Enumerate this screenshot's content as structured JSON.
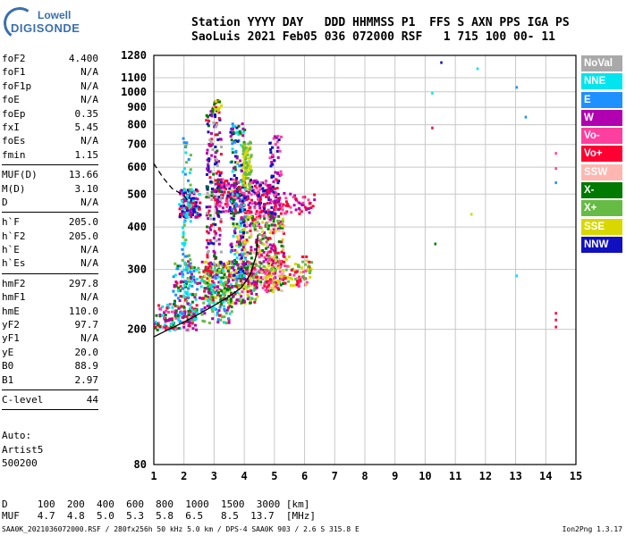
{
  "logo": {
    "line1": "Lowell",
    "line2": "DIGISONDE"
  },
  "header": {
    "line1": "Station YYYY DAY   DDD HHMMSS P1  FFS S AXN PPS IGA PS",
    "line2": "SaoLuis 2021 Feb05 036 072000 RSF   1 715 100 00- 11"
  },
  "params": [
    {
      "name": "foF2",
      "value": "4.400"
    },
    {
      "name": "foF1",
      "value": "N/A"
    },
    {
      "name": "foF1p",
      "value": "N/A"
    },
    {
      "name": "foE",
      "value": "N/A"
    },
    {
      "name": "foEp",
      "value": "0.35"
    },
    {
      "name": "fxI",
      "value": "5.45"
    },
    {
      "name": "foEs",
      "value": "N/A"
    },
    {
      "name": "fmin",
      "value": "1.15"
    },
    {
      "sep": true
    },
    {
      "name": "MUF(D)",
      "value": "13.66"
    },
    {
      "name": "M(D)",
      "value": "3.10"
    },
    {
      "name": "D",
      "value": "N/A"
    },
    {
      "sep": true
    },
    {
      "name": "h`F",
      "value": "205.0"
    },
    {
      "name": "h`F2",
      "value": "205.0"
    },
    {
      "name": "h`E",
      "value": "N/A"
    },
    {
      "name": "h`Es",
      "value": "N/A"
    },
    {
      "sep": true
    },
    {
      "name": "hmF2",
      "value": "297.8"
    },
    {
      "name": "hmF1",
      "value": "N/A"
    },
    {
      "name": "hmE",
      "value": "110.0"
    },
    {
      "name": "yF2",
      "value": "97.7"
    },
    {
      "name": "yF1",
      "value": "N/A"
    },
    {
      "name": "yE",
      "value": "20.0"
    },
    {
      "name": "B0",
      "value": "88.9"
    },
    {
      "name": "B1",
      "value": "2.97"
    },
    {
      "sep": true
    },
    {
      "name": "C-level",
      "value": "44"
    },
    {
      "sep": true
    }
  ],
  "auto": {
    "line1": "Auto:",
    "line2": "Artist5",
    "line3": "500200"
  },
  "legend": [
    {
      "label": "NoVal",
      "color": "#a9a9a9"
    },
    {
      "label": "NNE",
      "color": "#00e5ee"
    },
    {
      "label": "E",
      "color": "#1e90ff"
    },
    {
      "label": "W",
      "color": "#b000b0"
    },
    {
      "label": "Vo-",
      "color": "#ff3fa0"
    },
    {
      "label": "Vo+",
      "color": "#ff0033"
    },
    {
      "label": "SSW",
      "color": "#ffb6b0"
    },
    {
      "label": "X-",
      "color": "#007a00"
    },
    {
      "label": "X+",
      "color": "#66bb44"
    },
    {
      "label": "SSE",
      "color": "#d8d800"
    },
    {
      "label": "NNW",
      "color": "#1010c0"
    }
  ],
  "bottom": {
    "line1": "D     100  200  400  600  800  1000  1500  3000 [km]",
    "line2": "MUF   4.7  4.8  5.0  5.3  5.8  6.5   8.5  13.7  [MHz]"
  },
  "footer": {
    "left": "SAA0K_2021036072000.RSF / 280fx256h 50 kHz 5.0 km / DPS-4 SAA0K 903 / 2.6 S 315.8 E",
    "right": "Ion2Png 1.3.17"
  },
  "chart_data": {
    "type": "scatter",
    "title": "",
    "xlabel": "",
    "ylabel": "",
    "xlim": [
      1,
      15
    ],
    "ylim": [
      80,
      1280
    ],
    "x_ticks": [
      1,
      2,
      3,
      4,
      5,
      6,
      7,
      8,
      9,
      10,
      11,
      12,
      13,
      14,
      15
    ],
    "y_ticks": [
      80,
      200,
      300,
      400,
      500,
      600,
      700,
      800,
      900,
      1000,
      1100,
      1280
    ],
    "y_scale": "log",
    "grid": true,
    "legend_position": "right",
    "traces": [
      {
        "name": "X-",
        "style": "solid",
        "points": [
          [
            1.0,
            190
          ],
          [
            1.5,
            200
          ],
          [
            2.0,
            210
          ],
          [
            2.5,
            222
          ],
          [
            3.0,
            235
          ],
          [
            3.5,
            250
          ],
          [
            3.9,
            265
          ],
          [
            4.2,
            290
          ],
          [
            4.4,
            330
          ],
          [
            4.45,
            380
          ]
        ]
      },
      {
        "name": "X-",
        "style": "dashed",
        "points": [
          [
            1.0,
            615
          ],
          [
            1.3,
            560
          ],
          [
            1.6,
            520
          ],
          [
            2.0,
            495
          ],
          [
            2.2,
            470
          ]
        ]
      }
    ],
    "sparse_echoes": [
      {
        "x": 10.2,
        "y": 1000,
        "series": "NNE"
      },
      {
        "x": 10.5,
        "y": 1230,
        "series": "NNW"
      },
      {
        "x": 13.0,
        "y": 1040,
        "series": "E"
      },
      {
        "x": 13.3,
        "y": 850,
        "series": "E"
      },
      {
        "x": 10.2,
        "y": 790,
        "series": "Vo+"
      },
      {
        "x": 10.3,
        "y": 360,
        "series": "X-"
      },
      {
        "x": 11.5,
        "y": 440,
        "series": "SSE"
      },
      {
        "x": 13.0,
        "y": 290,
        "series": "NNE"
      },
      {
        "x": 14.3,
        "y": 665,
        "series": "Vo-"
      },
      {
        "x": 14.3,
        "y": 545,
        "series": "E"
      },
      {
        "x": 14.3,
        "y": 600,
        "series": "Vo-"
      },
      {
        "x": 14.3,
        "y": 225,
        "series": "Vo+"
      },
      {
        "x": 14.3,
        "y": 215,
        "series": "Vo+"
      },
      {
        "x": 14.3,
        "y": 205,
        "series": "Vo+"
      },
      {
        "x": 11.7,
        "y": 1180,
        "series": "NNE"
      }
    ]
  }
}
